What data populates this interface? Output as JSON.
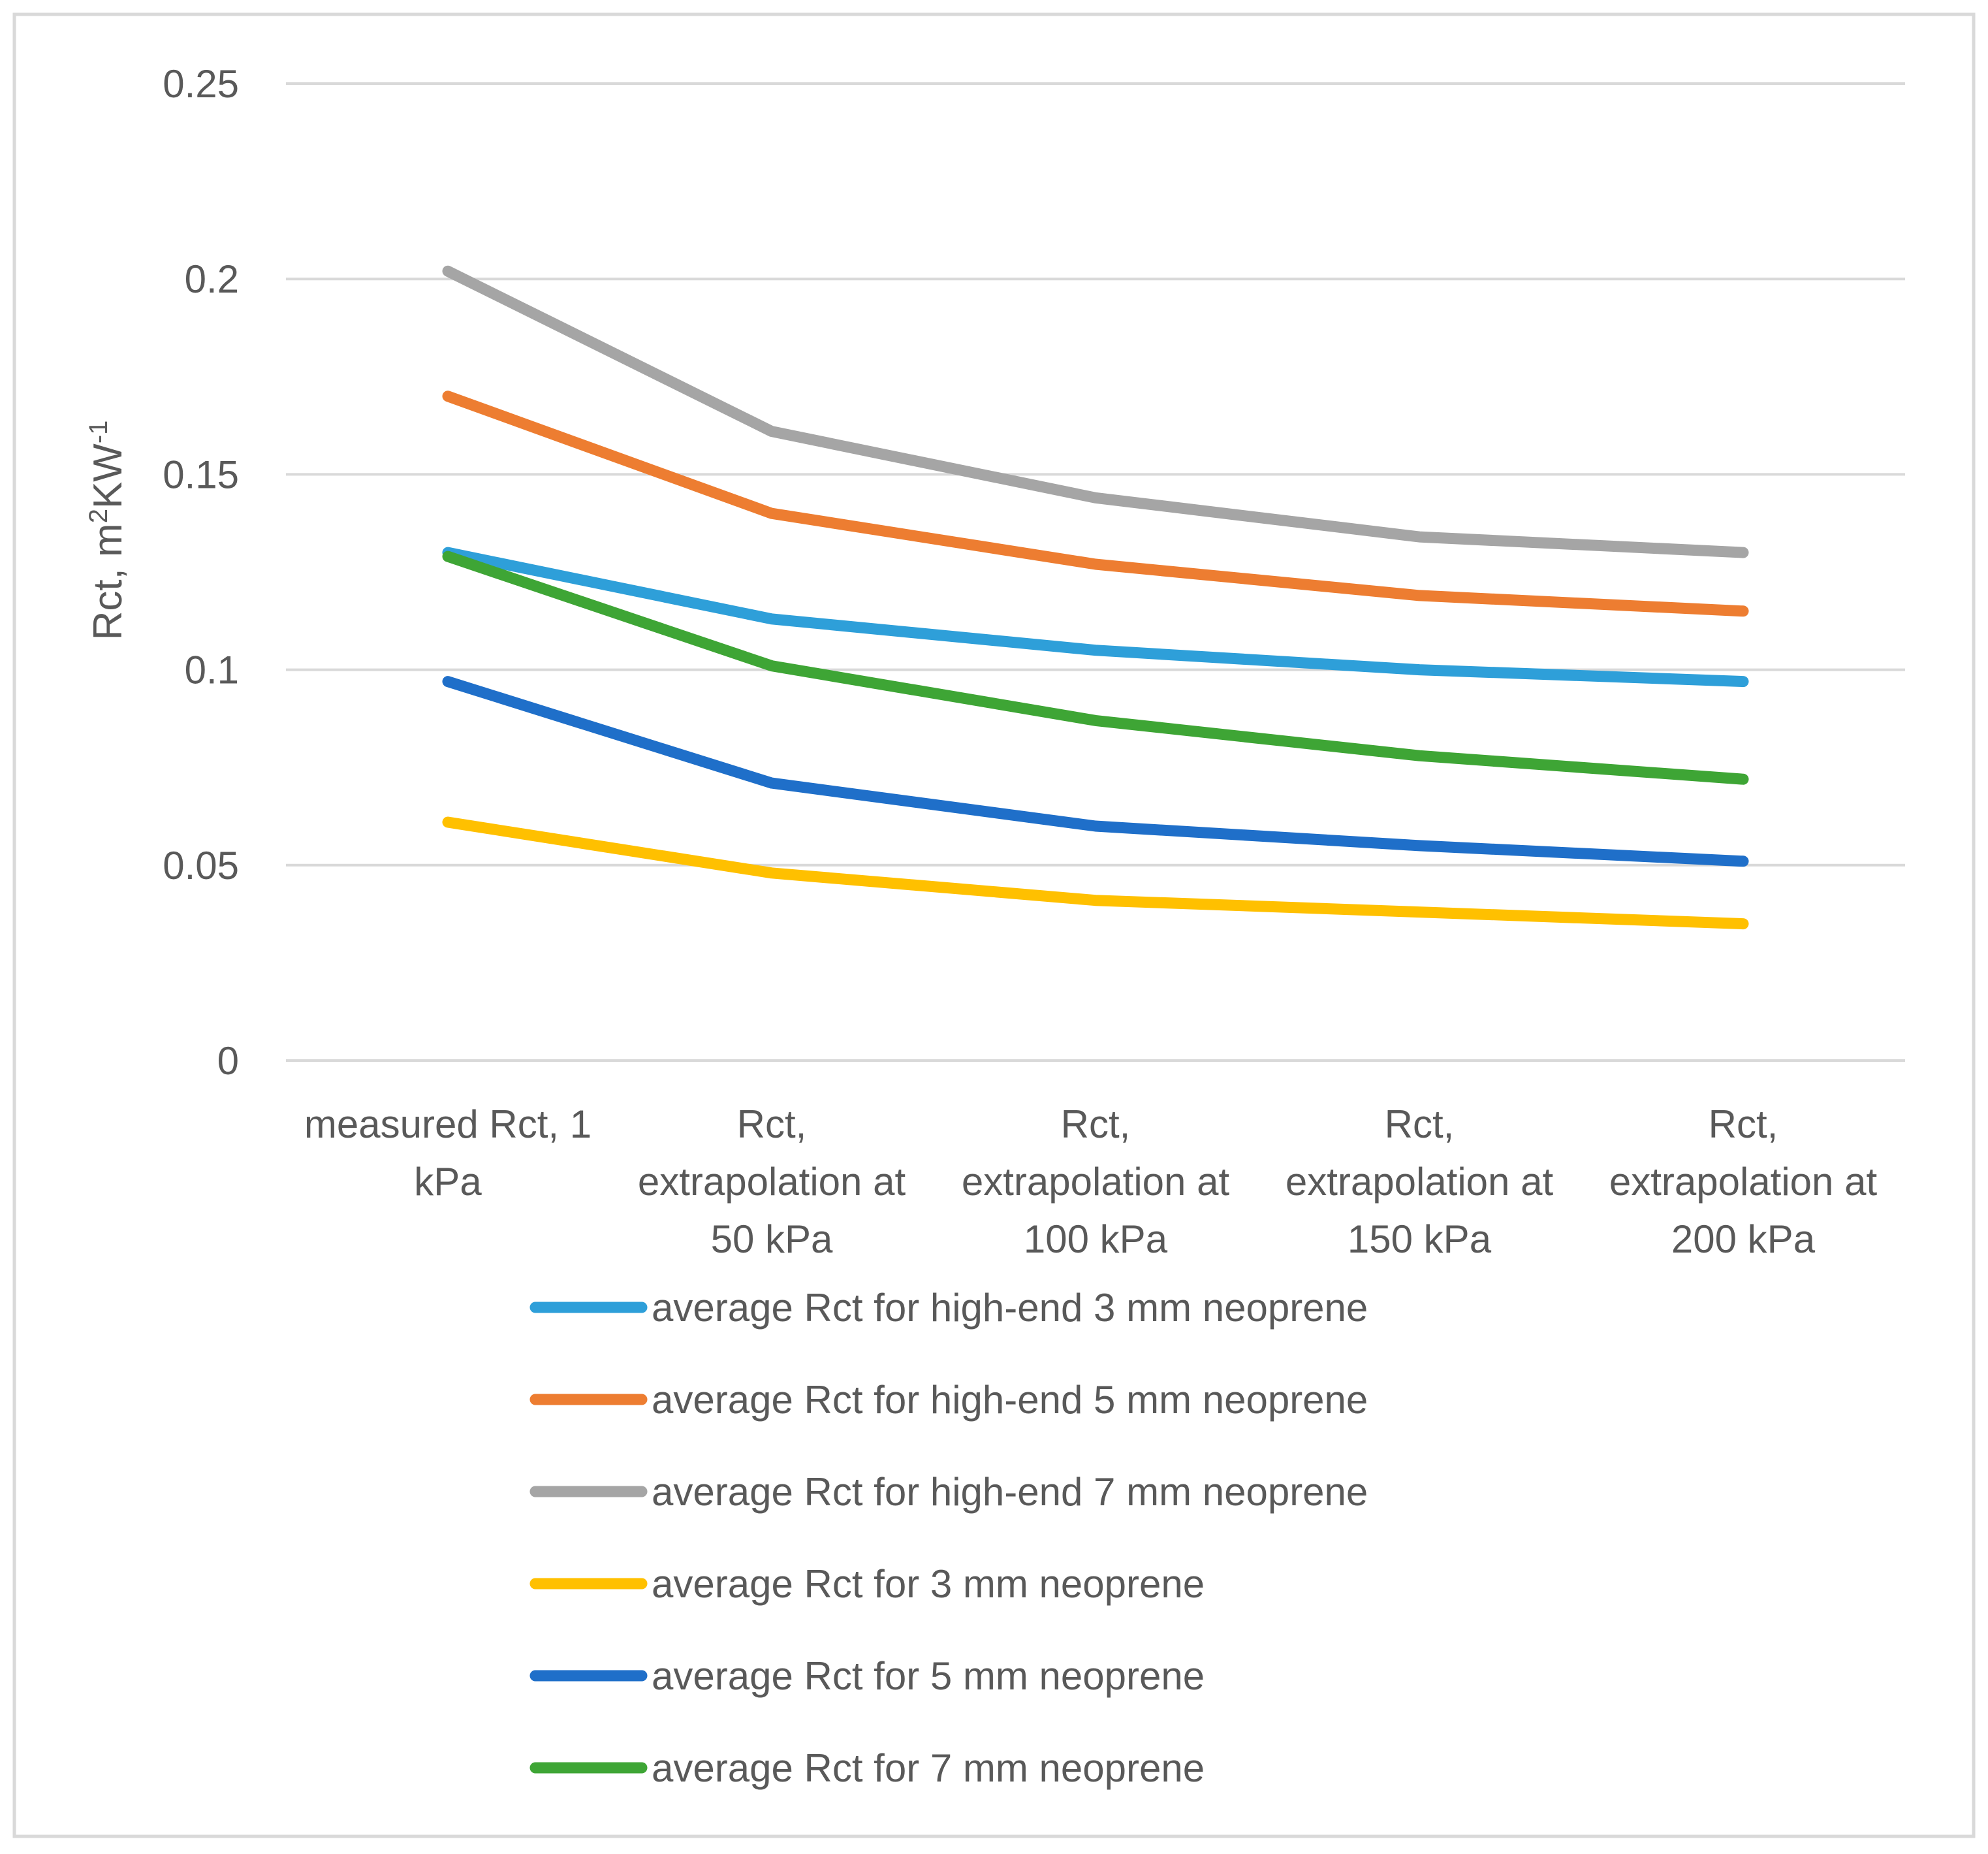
{
  "chart_data": {
    "type": "line",
    "title": "",
    "xlabel": "",
    "ylabel": {
      "base": "Rct, m",
      "sup1": "2",
      "mid": "KW",
      "sup2": "-1"
    },
    "ylim": [
      0,
      0.25
    ],
    "y_ticks": [
      "0",
      "0.05",
      "0.1",
      "0.15",
      "0.2",
      "0.25"
    ],
    "y_tick_values": [
      0,
      0.05,
      0.1,
      0.15,
      0.2,
      0.25
    ],
    "grid": true,
    "legend_position": "bottom",
    "categories": [
      [
        "measured Rct, 1",
        "kPa"
      ],
      [
        "Rct,",
        "extrapolation at",
        "50 kPa"
      ],
      [
        "Rct,",
        "extrapolation at",
        "100 kPa"
      ],
      [
        "Rct,",
        "extrapolation at",
        "150 kPa"
      ],
      [
        "Rct,",
        "extrapolation at",
        "200 kPa"
      ]
    ],
    "series": [
      {
        "name": "average Rct for high-end 3 mm neoprene",
        "color": "#2E9FD9",
        "values": [
          0.13,
          0.113,
          0.105,
          0.1,
          0.097
        ]
      },
      {
        "name": "average Rct for high-end 5 mm neoprene",
        "color": "#ED7D31",
        "values": [
          0.17,
          0.14,
          0.127,
          0.119,
          0.115
        ]
      },
      {
        "name": "average Rct for high-end 7 mm neoprene",
        "color": "#A5A5A5",
        "values": [
          0.202,
          0.161,
          0.144,
          0.134,
          0.13
        ]
      },
      {
        "name": "average Rct for 3 mm neoprene",
        "color": "#FFC000",
        "values": [
          0.061,
          0.048,
          0.041,
          0.038,
          0.035
        ]
      },
      {
        "name": "average Rct for 5 mm neoprene",
        "color": "#1F6FC9",
        "values": [
          0.097,
          0.071,
          0.06,
          0.055,
          0.051
        ]
      },
      {
        "name": "average Rct for 7 mm neoprene",
        "color": "#3EA535",
        "values": [
          0.129,
          0.101,
          0.087,
          0.078,
          0.072
        ]
      }
    ]
  }
}
